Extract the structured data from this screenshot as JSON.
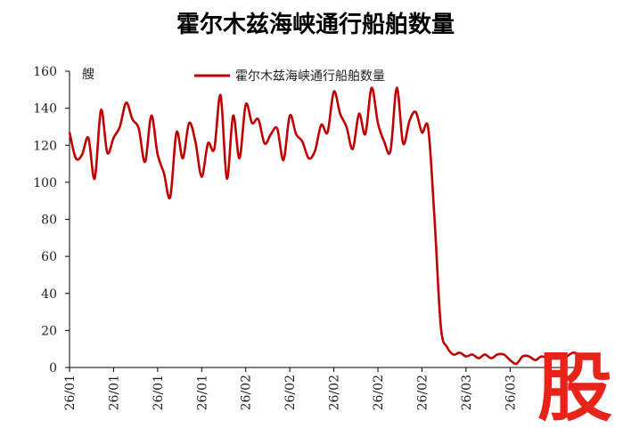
{
  "chart_data": {
    "type": "line",
    "title": "霍尔木兹海峡通行船舶数量",
    "y_unit": "艘",
    "watermark": "股",
    "categories": [
      "26/01",
      null,
      null,
      null,
      null,
      null,
      null,
      "26/01",
      null,
      null,
      null,
      null,
      null,
      null,
      "26/01",
      null,
      null,
      null,
      null,
      null,
      null,
      "26/01",
      null,
      null,
      null,
      null,
      null,
      null,
      "26/02",
      null,
      null,
      null,
      null,
      null,
      null,
      "26/02",
      null,
      null,
      null,
      null,
      null,
      null,
      "26/02",
      null,
      null,
      null,
      null,
      null,
      null,
      "26/02",
      null,
      null,
      null,
      null,
      null,
      null,
      "26/02",
      null,
      null,
      null,
      null,
      null,
      null,
      "26/03",
      null,
      null,
      null,
      null,
      null,
      null,
      "26/03",
      null,
      null,
      null,
      null,
      null,
      null,
      null,
      null,
      null,
      null,
      null
    ],
    "series": [
      {
        "name": "霍尔木兹海峡通行船舶数量",
        "color": "#c00000",
        "values": [
          127,
          113,
          115,
          124,
          102,
          139,
          116,
          124,
          130,
          143,
          134,
          129,
          111,
          136,
          115,
          105,
          92,
          127,
          113,
          132,
          122,
          103,
          121,
          118,
          147,
          102,
          136,
          113,
          142,
          132,
          134,
          121,
          126,
          129,
          112,
          136,
          126,
          122,
          113,
          117,
          131,
          127,
          149,
          137,
          130,
          118,
          137,
          126,
          151,
          132,
          122,
          117,
          151,
          121,
          133,
          138,
          127,
          129,
          80,
          22,
          11,
          7,
          8,
          6,
          7,
          5,
          7,
          5,
          7,
          7,
          4,
          2,
          6,
          6,
          4,
          6,
          5,
          6,
          5,
          6,
          8,
          7
        ]
      }
    ],
    "ylim": [
      0,
      160
    ],
    "yticks": [
      0,
      20,
      40,
      60,
      80,
      100,
      120,
      140,
      160
    ],
    "grid": false
  }
}
